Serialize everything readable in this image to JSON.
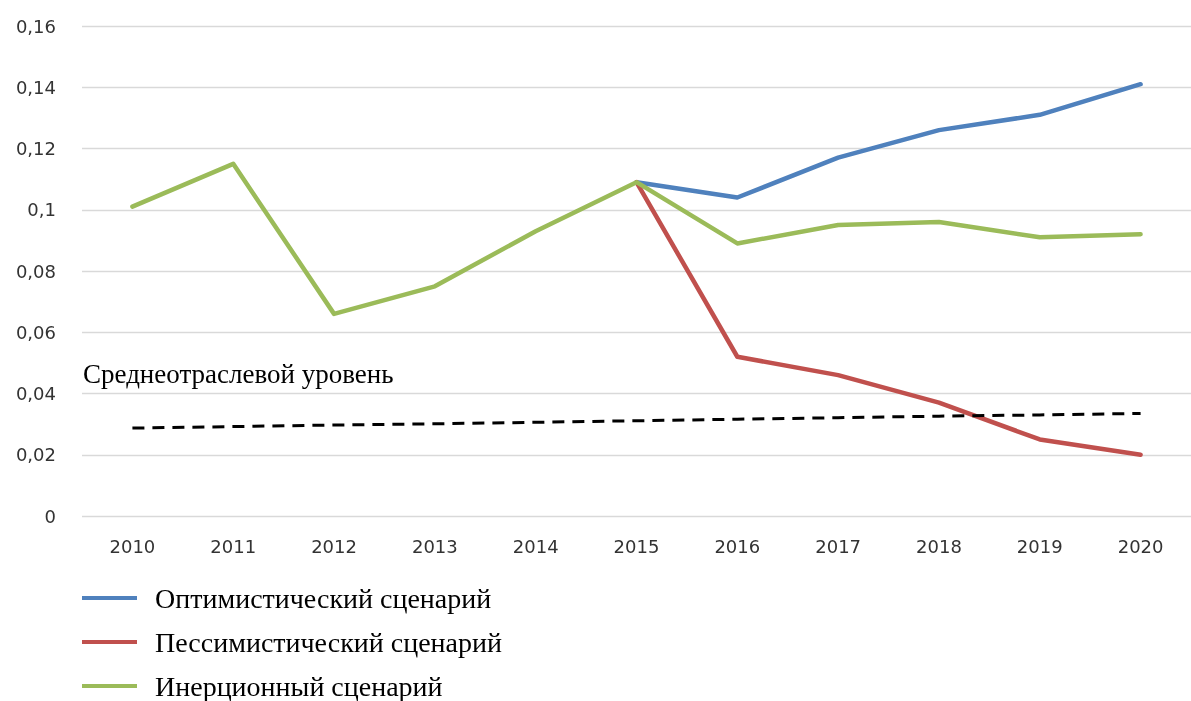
{
  "chart_data": {
    "type": "line",
    "categories": [
      "2010",
      "2011",
      "2012",
      "2013",
      "2014",
      "2015",
      "2016",
      "2017",
      "2018",
      "2019",
      "2020"
    ],
    "series": [
      {
        "name": "Оптимистический сценарий",
        "color": "#4f81bd",
        "values": [
          null,
          null,
          null,
          null,
          null,
          0.109,
          0.104,
          0.117,
          0.126,
          0.131,
          0.141
        ]
      },
      {
        "name": "Пессимистический сценарий",
        "color": "#c0504d",
        "values": [
          null,
          null,
          null,
          null,
          null,
          0.109,
          0.052,
          0.046,
          0.037,
          0.025,
          0.02
        ]
      },
      {
        "name": "Инерционный сценарий",
        "color": "#9bbb59",
        "values": [
          0.101,
          0.115,
          0.066,
          0.075,
          0.093,
          0.109,
          0.089,
          0.095,
          0.096,
          0.091,
          0.092
        ]
      },
      {
        "color": "#000000",
        "line_style": "dashed",
        "values": [
          0.0287,
          0.0292,
          0.0297,
          0.0301,
          0.0306,
          0.0311,
          0.0316,
          0.0321,
          0.0326,
          0.033,
          0.0335
        ]
      }
    ],
    "annotations": [
      {
        "text": "Среднеотраслевой уровень",
        "x": "2010",
        "y": 0.0287
      }
    ],
    "ylim": [
      0,
      0.16
    ],
    "yticks": [
      0,
      {
        "value": 0.02,
        "label": "0,02"
      },
      {
        "value": 0.04,
        "label": "0,04"
      },
      {
        "value": 0.06,
        "label": "0,06"
      },
      {
        "value": 0.08,
        "label": "0,08"
      },
      {
        "value": 0.1,
        "label": "0,1"
      },
      {
        "value": 0.12,
        "label": "0,12"
      },
      {
        "value": 0.14,
        "label": "0,14"
      },
      {
        "value": 0.16,
        "label": "0,16"
      }
    ],
    "grid": "y",
    "legend": "bottom left",
    "marker": "none"
  }
}
